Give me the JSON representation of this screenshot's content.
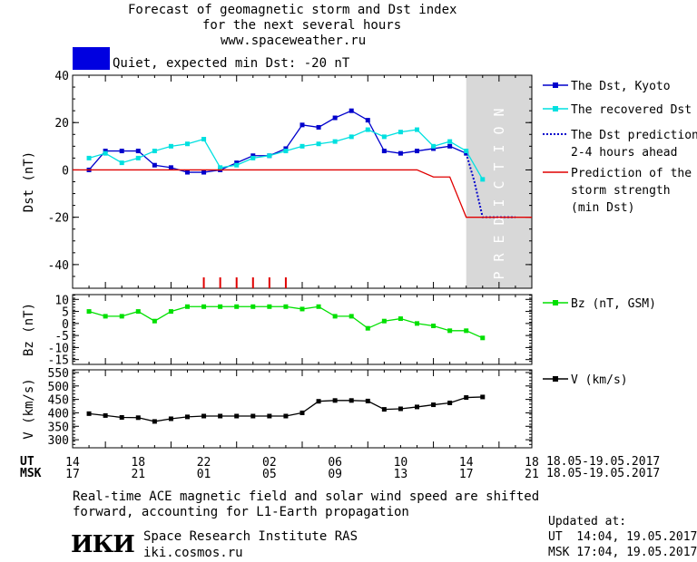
{
  "header": {
    "title_line1": "Forecast of geomagnetic storm and Dst index",
    "title_line2": "for the next several hours",
    "url": "www.spaceweather.ru",
    "status_text": "Quiet, expected min Dst: -20 nT",
    "status_color": "#0000e0"
  },
  "time_axis": {
    "ut_label": "UT",
    "msk_label": "MSK",
    "ut_ticks": [
      "14",
      "18",
      "22",
      "02",
      "06",
      "10",
      "14",
      "18"
    ],
    "msk_ticks": [
      "17",
      "21",
      "01",
      "05",
      "09",
      "13",
      "17",
      "21"
    ],
    "date_range_ut": "18.05-19.05.2017",
    "date_range_msk": "18.05-19.05.2017"
  },
  "prediction_label": "PREDICTION",
  "footer": {
    "note_line1": "Real-time ACE magnetic field and solar wind speed are shifted",
    "note_line2": "forward, accounting for L1-Earth propagation",
    "logo_text": "ИКИ",
    "institute": "Space Research Institute RAS",
    "site": "iki.cosmos.ru",
    "updated_label": "Updated at:",
    "updated_ut": "UT  14:04, 19.05.2017",
    "updated_msk": "MSK 17:04, 19.05.2017"
  },
  "chart_data": [
    {
      "type": "line",
      "ylabel": "Dst (nT)",
      "ylim": [
        -50,
        40
      ],
      "yticks": [
        40,
        20,
        0,
        -20,
        -40
      ],
      "xlim": [
        0,
        28
      ],
      "prediction_region": [
        24,
        28
      ],
      "series": [
        {
          "name": "The Dst, Kyoto",
          "color": "#0000cc",
          "marker": "square",
          "x": [
            1,
            2,
            3,
            4,
            5,
            6,
            7,
            8,
            9,
            10,
            11,
            12,
            13,
            14,
            15,
            16,
            17,
            18,
            19,
            20,
            21,
            22,
            23,
            24
          ],
          "y": [
            0,
            8,
            8,
            8,
            2,
            1,
            -1,
            -1,
            0,
            3,
            6,
            6,
            9,
            19,
            18,
            22,
            25,
            21,
            8,
            7,
            8,
            9,
            10,
            7
          ]
        },
        {
          "name": "The recovered Dst",
          "color": "#00e0e0",
          "marker": "square",
          "x": [
            1,
            2,
            3,
            4,
            5,
            6,
            7,
            8,
            9,
            10,
            11,
            12,
            13,
            14,
            15,
            16,
            17,
            18,
            19,
            20,
            21,
            22,
            23,
            24,
            25
          ],
          "y": [
            5,
            7,
            3,
            5,
            8,
            10,
            11,
            13,
            1,
            2,
            5,
            6,
            8,
            10,
            11,
            12,
            14,
            17,
            14,
            16,
            17,
            10,
            12,
            8,
            -4
          ]
        },
        {
          "name": "The Dst prediction\n2-4 hours ahead",
          "color": "#0000cc",
          "style": "dotted",
          "x": [
            24,
            24.5,
            25,
            26,
            27
          ],
          "y": [
            7,
            -5,
            -20,
            -20,
            -20
          ]
        },
        {
          "name": "Prediction of the\nstorm strength\n(min Dst)",
          "color": "#e00000",
          "style": "solid",
          "x": [
            0,
            21,
            22,
            23,
            24,
            28
          ],
          "y": [
            0,
            0,
            -3,
            -3,
            -20,
            -20
          ]
        }
      ],
      "markers_red_ticks": [
        8,
        9,
        10,
        11,
        12,
        13
      ]
    },
    {
      "type": "line",
      "ylabel": "Bz (nT)",
      "ylim": [
        -17,
        12
      ],
      "yticks": [
        10,
        5,
        0,
        -5,
        -10,
        -15
      ],
      "xlim": [
        0,
        28
      ],
      "series": [
        {
          "name": "Bz (nT, GSM)",
          "color": "#00e000",
          "marker": "square",
          "x": [
            1,
            2,
            3,
            4,
            5,
            6,
            7,
            8,
            9,
            10,
            11,
            12,
            13,
            14,
            15,
            16,
            17,
            18,
            19,
            20,
            21,
            22,
            23,
            24,
            25
          ],
          "y": [
            5,
            3,
            3,
            5,
            1,
            5,
            7,
            7,
            7,
            7,
            7,
            7,
            7,
            6,
            7,
            3,
            3,
            -2,
            1,
            2,
            0,
            -1,
            -3,
            -3,
            -6
          ]
        }
      ]
    },
    {
      "type": "line",
      "ylabel": "V (km/s)",
      "ylim": [
        270,
        560
      ],
      "yticks": [
        550,
        500,
        450,
        400,
        350,
        300
      ],
      "xlim": [
        0,
        28
      ],
      "series": [
        {
          "name": "V (km/s)",
          "color": "#000000",
          "marker": "square",
          "x": [
            1,
            2,
            3,
            4,
            5,
            6,
            7,
            8,
            9,
            10,
            11,
            12,
            13,
            14,
            15,
            16,
            17,
            18,
            19,
            20,
            21,
            22,
            23,
            24,
            25
          ],
          "y": [
            397,
            390,
            383,
            382,
            368,
            378,
            385,
            388,
            388,
            388,
            388,
            388,
            388,
            400,
            443,
            446,
            446,
            444,
            413,
            415,
            422,
            430,
            437,
            457,
            459
          ]
        }
      ]
    }
  ]
}
